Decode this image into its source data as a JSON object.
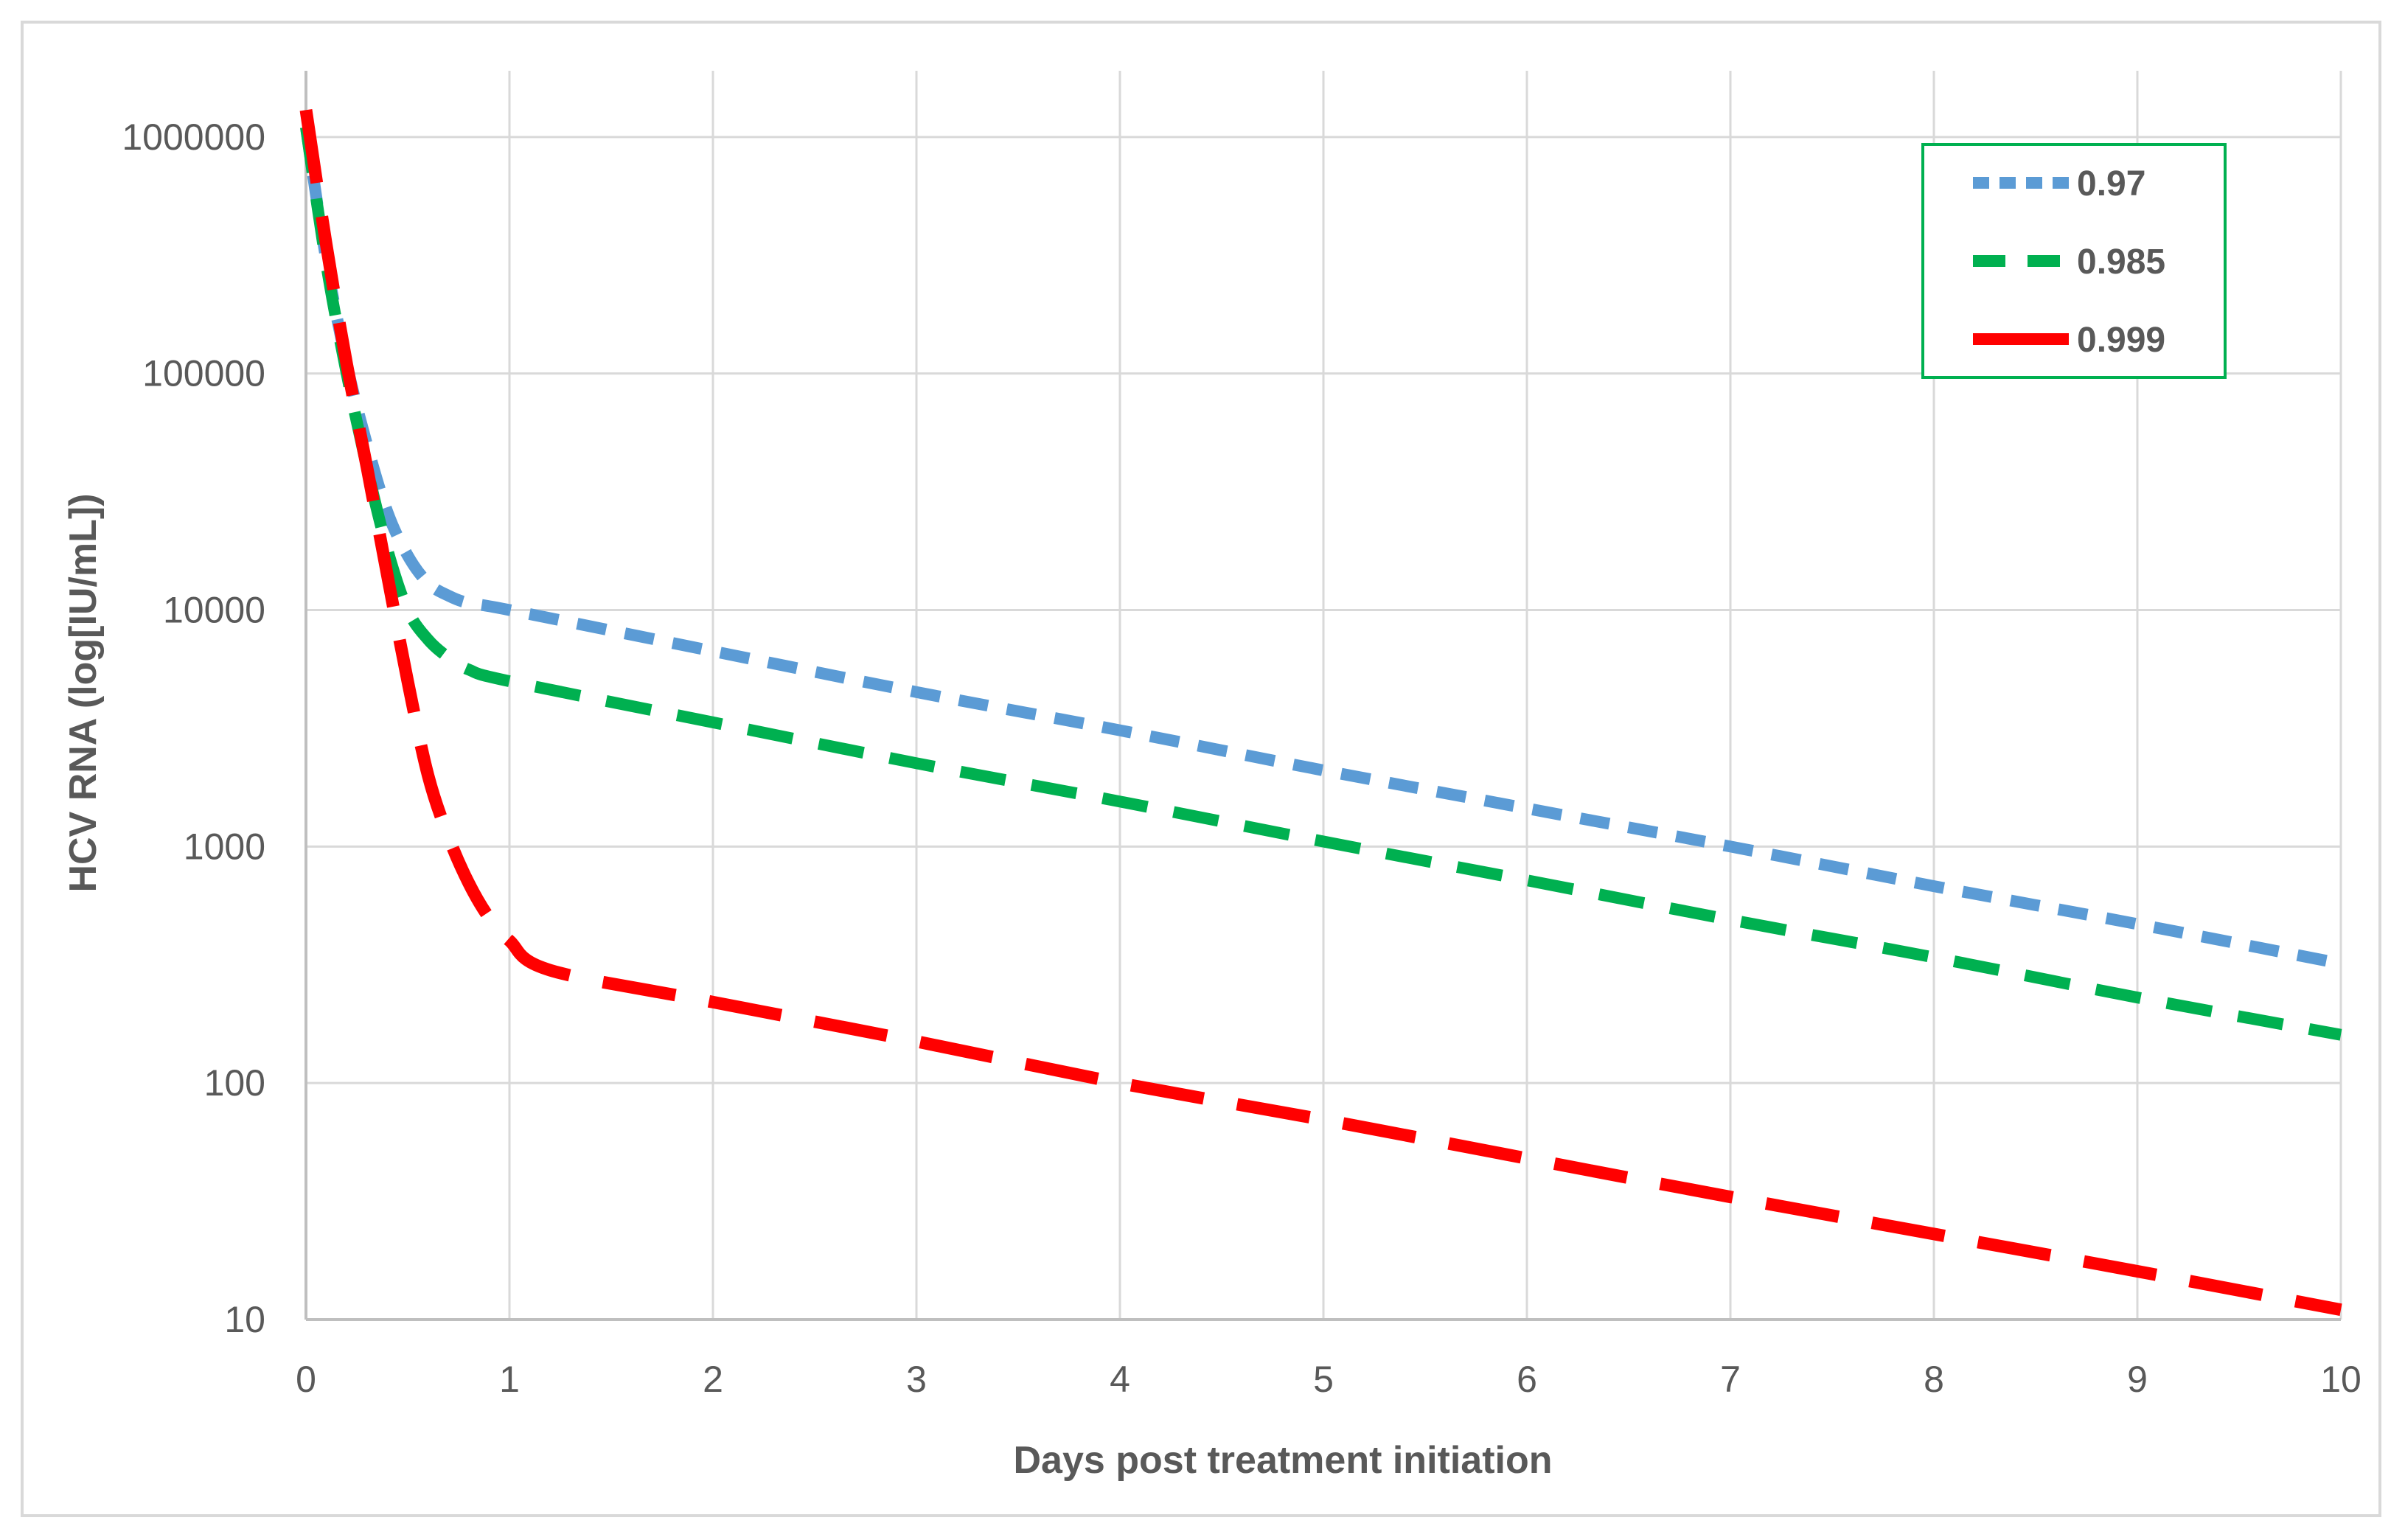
{
  "chart_data": {
    "type": "line",
    "title": "",
    "xlabel": "Days post treatment initiation",
    "ylabel": "HCV RNA (log[IU/mL])",
    "xlim": [
      0,
      10
    ],
    "ylim": [
      10,
      1000000
    ],
    "yscale": "log",
    "grid": true,
    "legend_position": "top-right",
    "x_ticks": [
      "0",
      "1",
      "2",
      "3",
      "4",
      "5",
      "6",
      "7",
      "8",
      "9",
      "10"
    ],
    "y_ticks": [
      "10",
      "100",
      "1000",
      "10000",
      "100000",
      "1000000"
    ],
    "series": [
      {
        "name": "0.97",
        "color": "#5b9bd5",
        "dash": "medium",
        "x": [
          0,
          0.1,
          0.2,
          0.3,
          0.4,
          0.5,
          0.6,
          0.7,
          0.8,
          1,
          2,
          3,
          4,
          5,
          6,
          7,
          8,
          9,
          10
        ],
        "y": [
          1100000,
          300000,
          110000,
          50000,
          26000,
          17000,
          13000,
          11500,
          10700,
          10000,
          6700,
          4500,
          3100,
          2100,
          1450,
          1000,
          680,
          470,
          320
        ]
      },
      {
        "name": "0.985",
        "color": "#00b050",
        "dash": "long",
        "x": [
          0,
          0.1,
          0.2,
          0.3,
          0.4,
          0.5,
          0.6,
          0.7,
          0.8,
          1,
          2,
          3,
          4,
          5,
          6,
          7,
          8,
          9,
          10
        ],
        "y": [
          1100000,
          290000,
          100000,
          40000,
          18000,
          10000,
          7500,
          6300,
          5600,
          5000,
          3350,
          2250,
          1550,
          1050,
          720,
          490,
          340,
          230,
          160
        ]
      },
      {
        "name": "0.999",
        "color": "#ff0000",
        "dash": "extra-long",
        "x": [
          0,
          0.1,
          0.2,
          0.3,
          0.4,
          0.5,
          0.6,
          0.7,
          0.8,
          0.9,
          1,
          1.2,
          2,
          3,
          4,
          5,
          6,
          7,
          8,
          9,
          10
        ],
        "y": [
          1300000,
          350000,
          110000,
          40000,
          14000,
          5000,
          2000,
          1100,
          700,
          500,
          400,
          300,
          220,
          150,
          100,
          70,
          48,
          33,
          23,
          16,
          11
        ]
      }
    ]
  }
}
